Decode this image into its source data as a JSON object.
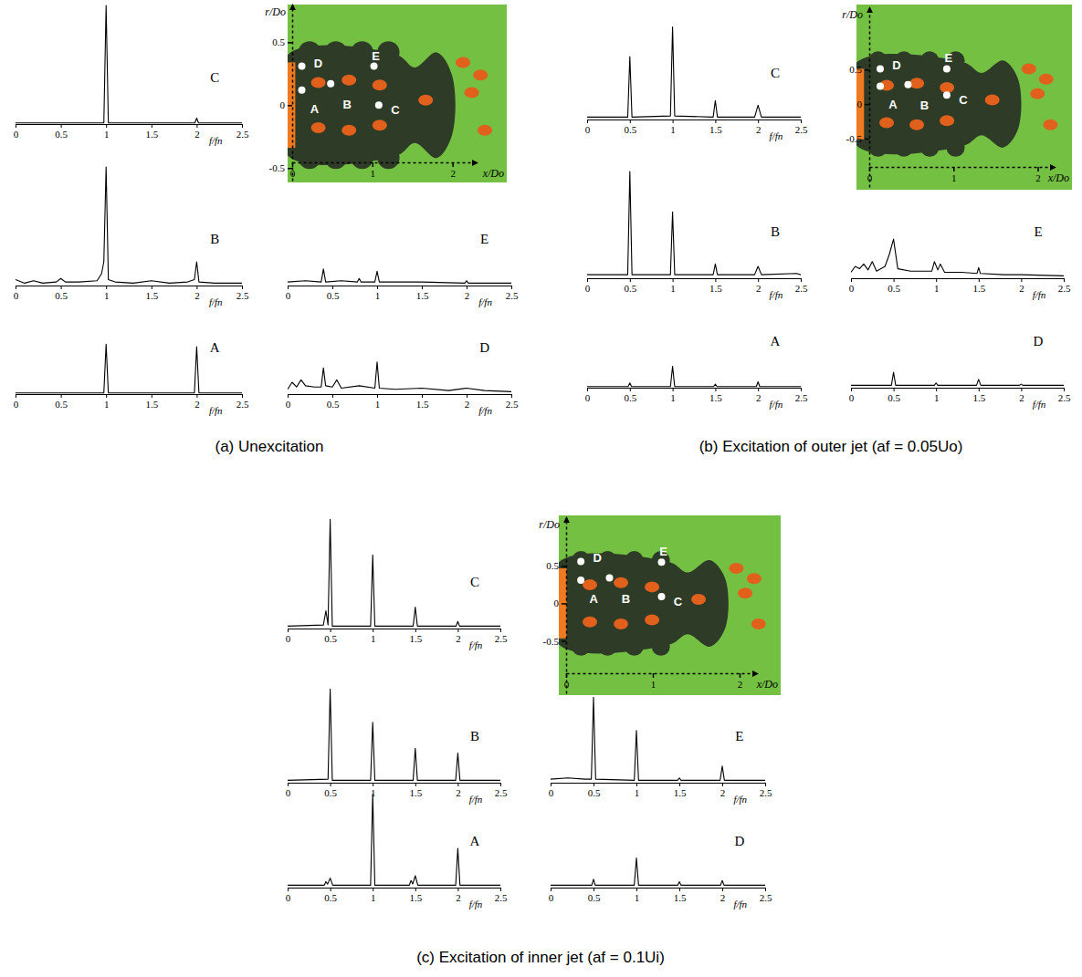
{
  "chart_data": [
    {
      "type": "line",
      "title": "C",
      "xlabel": "f/fn",
      "color": "#000000",
      "xlim": [
        0,
        2.5
      ],
      "xticks": [
        0,
        0.5,
        1,
        1.5,
        2,
        2.5
      ],
      "ylim": [
        0,
        1
      ],
      "tick_labels": "x",
      "x": [
        0,
        0.975,
        1,
        1.025,
        1.98,
        2,
        2.02,
        2.5
      ],
      "values": [
        0.01,
        0.01,
        1,
        0.01,
        0.01,
        0.05,
        0.01,
        0.01
      ]
    },
    {
      "type": "line",
      "title": "B",
      "xlabel": "f/fn",
      "color": "#000000",
      "xlim": [
        0,
        2.5
      ],
      "xticks": [
        0,
        0.5,
        1,
        1.5,
        2,
        2.5
      ],
      "ylim": [
        0,
        1
      ],
      "tick_labels": "x",
      "x": [
        0,
        0.1,
        0.2,
        0.3,
        0.45,
        0.5,
        0.55,
        0.7,
        0.9,
        0.95,
        0.975,
        1,
        1.025,
        1.1,
        1.3,
        1.5,
        1.7,
        1.9,
        1.975,
        2,
        2.025,
        2.2,
        2.5
      ],
      "values": [
        0.05,
        0.02,
        0.04,
        0.02,
        0.03,
        0.06,
        0.03,
        0.03,
        0.04,
        0.1,
        0.2,
        1,
        0.05,
        0.03,
        0.02,
        0.04,
        0.02,
        0.03,
        0.05,
        0.2,
        0.03,
        0.02,
        0.02
      ]
    },
    {
      "type": "line",
      "title": "A",
      "xlabel": "f/fn",
      "color": "#000000",
      "xlim": [
        0,
        2.5
      ],
      "xticks": [
        0,
        0.5,
        1,
        1.5,
        2,
        2.5
      ],
      "ylim": [
        0,
        1
      ],
      "tick_labels": "x",
      "x": [
        0,
        0.975,
        1,
        1.025,
        1.975,
        2,
        2.025,
        2.5
      ],
      "values": [
        0.01,
        0.01,
        0.42,
        0.01,
        0.01,
        0.4,
        0.01,
        0.01
      ]
    },
    {
      "type": "line",
      "title": "E",
      "xlabel": "f/fn",
      "color": "#000000",
      "xlim": [
        0,
        2.5
      ],
      "xticks": [
        0,
        0.5,
        1,
        1.5,
        2,
        2.5
      ],
      "ylim": [
        0,
        1
      ],
      "tick_labels": "x",
      "x": [
        0,
        0.2,
        0.375,
        0.4,
        0.425,
        0.6,
        0.78,
        0.8,
        0.82,
        0.975,
        1,
        1.025,
        1.5,
        1.98,
        2,
        2.02,
        2.5
      ],
      "values": [
        0.03,
        0.04,
        0.03,
        0.14,
        0.03,
        0.04,
        0.03,
        0.06,
        0.03,
        0.03,
        0.12,
        0.03,
        0.03,
        0.02,
        0.04,
        0.02,
        0.02
      ]
    },
    {
      "type": "line",
      "title": "D",
      "xlabel": "f/fn",
      "color": "#000000",
      "xlim": [
        0,
        2.5
      ],
      "xticks": [
        0,
        0.5,
        1,
        1.5,
        2,
        2.5
      ],
      "ylim": [
        0,
        1
      ],
      "tick_labels": "x",
      "x": [
        0,
        0.05,
        0.1,
        0.15,
        0.2,
        0.3,
        0.375,
        0.4,
        0.425,
        0.5,
        0.55,
        0.6,
        0.8,
        0.975,
        1,
        1.025,
        1.2,
        1.5,
        1.8,
        2,
        2.2,
        2.5
      ],
      "values": [
        0.04,
        0.1,
        0.06,
        0.12,
        0.07,
        0.06,
        0.06,
        0.22,
        0.07,
        0.06,
        0.12,
        0.05,
        0.07,
        0.05,
        0.27,
        0.05,
        0.04,
        0.05,
        0.03,
        0.05,
        0.03,
        0.02
      ]
    },
    {
      "type": "line",
      "title": "C",
      "xlabel": "f/fn",
      "color": "#000000",
      "xlim": [
        0,
        2.5
      ],
      "xticks": [
        0,
        0.5,
        1,
        1.5,
        2,
        2.5
      ],
      "ylim": [
        0,
        1
      ],
      "tick_labels": "x",
      "x": [
        0,
        0.475,
        0.5,
        0.525,
        0.975,
        1,
        1.025,
        1.475,
        1.5,
        1.525,
        1.96,
        2,
        2.04,
        2.5
      ],
      "values": [
        0.02,
        0.02,
        0.53,
        0.02,
        0.03,
        0.78,
        0.03,
        0.02,
        0.16,
        0.02,
        0.02,
        0.12,
        0.02,
        0.02
      ]
    },
    {
      "type": "line",
      "title": "B",
      "xlabel": "f/fn",
      "color": "#000000",
      "xlim": [
        0,
        2.5
      ],
      "xticks": [
        0,
        0.5,
        1,
        1.5,
        2,
        2.5
      ],
      "ylim": [
        0,
        1
      ],
      "tick_labels": "x",
      "x": [
        0,
        0.475,
        0.5,
        0.525,
        0.975,
        1,
        1.025,
        1.475,
        1.5,
        1.525,
        1.96,
        2,
        2.04,
        2.45,
        2.5
      ],
      "values": [
        0.03,
        0.03,
        0.9,
        0.03,
        0.03,
        0.56,
        0.03,
        0.03,
        0.12,
        0.03,
        0.03,
        0.1,
        0.03,
        0.04,
        0.03
      ]
    },
    {
      "type": "line",
      "title": "A",
      "xlabel": "f/fn",
      "color": "#000000",
      "xlim": [
        0,
        2.5
      ],
      "xticks": [
        0,
        0.5,
        1,
        1.5,
        2,
        2.5
      ],
      "ylim": [
        0,
        1
      ],
      "tick_labels": "x",
      "x": [
        0,
        0.48,
        0.5,
        0.52,
        0.975,
        1,
        1.025,
        1.48,
        1.5,
        1.52,
        1.98,
        2,
        2.02,
        2.5
      ],
      "values": [
        0.01,
        0.01,
        0.04,
        0.01,
        0.01,
        0.18,
        0.01,
        0.01,
        0.03,
        0.01,
        0.01,
        0.05,
        0.01,
        0.01
      ]
    },
    {
      "type": "line",
      "title": "E",
      "xlabel": "f/fn",
      "color": "#000000",
      "xlim": [
        0,
        2.5
      ],
      "xticks": [
        0,
        0.5,
        1,
        1.5,
        2,
        2.5
      ],
      "ylim": [
        0,
        1
      ],
      "tick_labels": "x",
      "x": [
        0,
        0.05,
        0.1,
        0.15,
        0.2,
        0.25,
        0.3,
        0.4,
        0.45,
        0.5,
        0.55,
        0.7,
        0.95,
        0.98,
        1.02,
        1.05,
        1.1,
        1.3,
        1.48,
        1.5,
        1.52,
        1.8,
        2,
        2.5
      ],
      "values": [
        0.05,
        0.1,
        0.08,
        0.12,
        0.07,
        0.14,
        0.06,
        0.1,
        0.2,
        0.33,
        0.08,
        0.06,
        0.06,
        0.14,
        0.07,
        0.12,
        0.05,
        0.05,
        0.04,
        0.09,
        0.04,
        0.03,
        0.03,
        0.02
      ]
    },
    {
      "type": "line",
      "title": "D",
      "xlabel": "f/fn",
      "color": "#000000",
      "xlim": [
        0,
        2.5
      ],
      "xticks": [
        0,
        0.5,
        1,
        1.5,
        2,
        2.5
      ],
      "ylim": [
        0,
        1
      ],
      "tick_labels": "x",
      "x": [
        0,
        0.475,
        0.5,
        0.525,
        0.98,
        1,
        1.02,
        1.475,
        1.5,
        1.525,
        1.98,
        2,
        2.02,
        2.5
      ],
      "values": [
        0.02,
        0.02,
        0.13,
        0.02,
        0.02,
        0.04,
        0.02,
        0.02,
        0.07,
        0.02,
        0.02,
        0.03,
        0.02,
        0.02
      ]
    },
    {
      "type": "line",
      "title": "C",
      "xlabel": "f/fn",
      "color": "#000000",
      "xlim": [
        0,
        2.5
      ],
      "xticks": [
        0,
        0.5,
        1,
        1.5,
        2,
        2.5
      ],
      "ylim": [
        0,
        1
      ],
      "tick_labels": "x",
      "x": [
        0,
        0.42,
        0.45,
        0.475,
        0.5,
        0.525,
        0.975,
        1,
        1.025,
        1.475,
        1.5,
        1.525,
        1.98,
        2,
        2.02,
        2.5
      ],
      "values": [
        0.02,
        0.03,
        0.15,
        0.03,
        0.92,
        0.02,
        0.02,
        0.62,
        0.02,
        0.02,
        0.18,
        0.02,
        0.02,
        0.06,
        0.02,
        0.02
      ]
    },
    {
      "type": "line",
      "title": "B",
      "xlabel": "f/fn",
      "color": "#000000",
      "xlim": [
        0,
        2.5
      ],
      "xticks": [
        0,
        0.5,
        1,
        1.5,
        2,
        2.5
      ],
      "ylim": [
        0,
        1
      ],
      "tick_labels": "x",
      "x": [
        0,
        0.475,
        0.5,
        0.525,
        0.975,
        1,
        1.025,
        1.475,
        1.5,
        1.525,
        1.975,
        2,
        2.025,
        2.5
      ],
      "values": [
        0.02,
        0.03,
        0.79,
        0.02,
        0.02,
        0.51,
        0.02,
        0.02,
        0.29,
        0.02,
        0.02,
        0.25,
        0.02,
        0.02
      ]
    },
    {
      "type": "line",
      "title": "A",
      "xlabel": "f/fn",
      "color": "#000000",
      "xlim": [
        0,
        2.5
      ],
      "xticks": [
        0,
        0.5,
        1,
        1.5,
        2,
        2.5
      ],
      "ylim": [
        0,
        1
      ],
      "tick_labels": "x",
      "x": [
        0,
        0.43,
        0.45,
        0.47,
        0.5,
        0.53,
        0.975,
        1,
        1.025,
        1.43,
        1.45,
        1.47,
        1.5,
        1.53,
        1.975,
        2,
        2.025,
        2.5
      ],
      "values": [
        0.02,
        0.02,
        0.05,
        0.03,
        0.08,
        0.02,
        0.02,
        0.79,
        0.02,
        0.02,
        0.06,
        0.03,
        0.1,
        0.02,
        0.02,
        0.33,
        0.02,
        0.02
      ]
    },
    {
      "type": "line",
      "title": "E",
      "xlabel": "f/fn",
      "color": "#000000",
      "xlim": [
        0,
        2.5
      ],
      "xticks": [
        0,
        0.5,
        1,
        1.5,
        2,
        2.5
      ],
      "ylim": [
        0,
        1
      ],
      "tick_labels": "x",
      "x": [
        0,
        0.2,
        0.4,
        0.475,
        0.5,
        0.525,
        0.975,
        1,
        1.025,
        1.48,
        1.5,
        1.52,
        1.975,
        2,
        2.025,
        2.5
      ],
      "values": [
        0.03,
        0.04,
        0.03,
        0.03,
        0.72,
        0.03,
        0.02,
        0.44,
        0.02,
        0.02,
        0.04,
        0.02,
        0.02,
        0.14,
        0.02,
        0.02
      ]
    },
    {
      "type": "line",
      "title": "D",
      "xlabel": "f/fn",
      "color": "#000000",
      "xlim": [
        0,
        2.5
      ],
      "xticks": [
        0,
        0.5,
        1,
        1.5,
        2,
        2.5
      ],
      "ylim": [
        0,
        1
      ],
      "tick_labels": "x",
      "x": [
        0,
        0.48,
        0.5,
        0.52,
        0.975,
        1,
        1.025,
        1.48,
        1.5,
        1.52,
        1.98,
        2,
        2.02,
        2.5
      ],
      "values": [
        0.02,
        0.02,
        0.07,
        0.02,
        0.02,
        0.25,
        0.02,
        0.02,
        0.05,
        0.02,
        0.02,
        0.06,
        0.02,
        0.02
      ]
    }
  ],
  "figure": {
    "panels": [
      {
        "caption": "(a) Unexcitation",
        "image": {
          "xlabel": "x/Do",
          "ylabel": "r/Do",
          "xlim": [
            0,
            2.3
          ],
          "ylim": [
            -0.6,
            0.8
          ],
          "xticks": [
            0,
            1,
            2
          ],
          "yticks": [
            0.5,
            0,
            -0.5
          ],
          "points": [
            {
              "label": "A",
              "x": 0.12,
              "r": 0.12
            },
            {
              "label": "B",
              "x": 0.48,
              "r": 0.17
            },
            {
              "label": "C",
              "x": 1.08,
              "r": 0
            },
            {
              "label": "D",
              "x": 0.12,
              "r": 0.31
            },
            {
              "label": "E",
              "x": 1.02,
              "r": 0.31
            }
          ]
        }
      },
      {
        "caption": "(b) Excitation of outer jet (af = 0.05Uo)",
        "image": {
          "xlabel": "x/Do",
          "ylabel": "r/Do",
          "xlim": [
            0,
            2.2
          ],
          "ylim": [
            -1.2,
            1.4
          ],
          "xticks": [
            0,
            1,
            2
          ],
          "yticks": [
            0.5,
            0,
            -0.5
          ],
          "points": [
            {
              "label": "A",
              "x": 0.13,
              "r": 0.26
            },
            {
              "label": "B",
              "x": 0.46,
              "r": 0.28
            },
            {
              "label": "C",
              "x": 0.92,
              "r": 0.13
            },
            {
              "label": "D",
              "x": 0.13,
              "r": 0.51
            },
            {
              "label": "E",
              "x": 0.92,
              "r": 0.51
            }
          ]
        }
      },
      {
        "caption": "(c) Excitation of inner jet (af = 0.1Ui)",
        "image": {
          "xlabel": "x/Do",
          "ylabel": "r/Do",
          "xlim": [
            0,
            2.2
          ],
          "ylim": [
            -1.2,
            1.15
          ],
          "xticks": [
            0,
            1,
            2
          ],
          "yticks": [
            0.5,
            0,
            -0.5
          ],
          "points": [
            {
              "label": "A",
              "x": 0.17,
              "r": 0.31
            },
            {
              "label": "B",
              "x": 0.5,
              "r": 0.34
            },
            {
              "label": "C",
              "x": 1.1,
              "r": 0.09
            },
            {
              "label": "D",
              "x": 0.17,
              "r": 0.56
            },
            {
              "label": "E",
              "x": 1.1,
              "r": 0.55
            }
          ]
        }
      }
    ]
  }
}
